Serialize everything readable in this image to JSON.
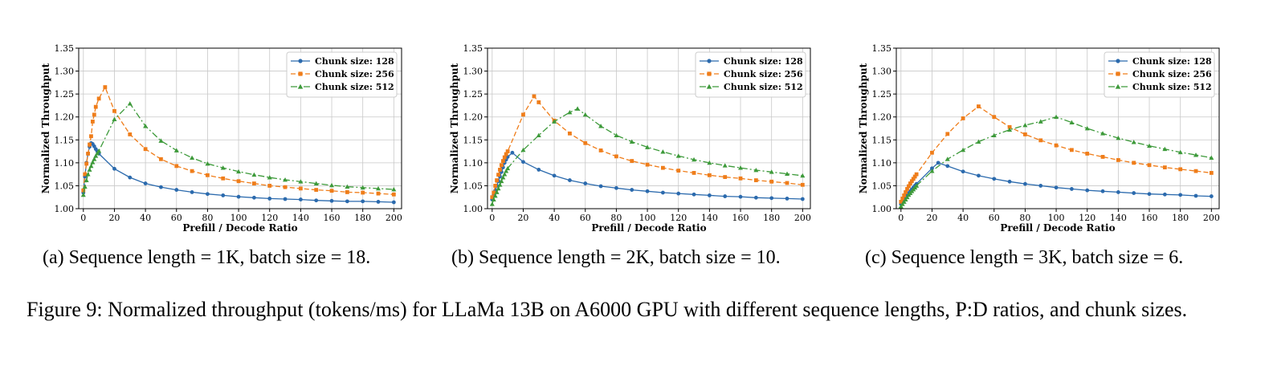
{
  "chart_data": [
    {
      "type": "line",
      "caption": "(a) Sequence length = 1K, batch size = 18.",
      "xlabel": "Prefill / Decode Ratio",
      "ylabel": "Normalized Throughput",
      "xlim": [
        -3,
        205
      ],
      "ylim": [
        1.0,
        1.35
      ],
      "xticks": [
        0,
        20,
        40,
        60,
        80,
        100,
        120,
        140,
        160,
        180,
        200
      ],
      "yticks": [
        1.0,
        1.05,
        1.1,
        1.15,
        1.2,
        1.25,
        1.3,
        1.35
      ],
      "grid": true,
      "legend_position": "top-right",
      "series": [
        {
          "name": "Chunk size: 128",
          "color": "#2b6aad",
          "marker": "circle",
          "dash": "solid",
          "x": [
            0,
            1,
            2,
            3,
            4,
            5,
            6,
            7,
            8,
            9,
            10,
            20,
            30,
            40,
            50,
            60,
            70,
            80,
            90,
            100,
            110,
            120,
            130,
            140,
            150,
            160,
            170,
            180,
            190,
            200
          ],
          "y": [
            1.035,
            1.07,
            1.1,
            1.12,
            1.135,
            1.143,
            1.141,
            1.136,
            1.13,
            1.125,
            1.12,
            1.087,
            1.068,
            1.055,
            1.047,
            1.041,
            1.036,
            1.032,
            1.029,
            1.026,
            1.024,
            1.022,
            1.021,
            1.02,
            1.018,
            1.017,
            1.016,
            1.016,
            1.015,
            1.014
          ]
        },
        {
          "name": "Chunk size: 256",
          "color": "#ef7d1a",
          "marker": "square",
          "dash": "dashed",
          "x": [
            0,
            1,
            2,
            3,
            4,
            5,
            6,
            7,
            8,
            10,
            14,
            20,
            30,
            40,
            50,
            60,
            70,
            80,
            90,
            100,
            110,
            120,
            130,
            140,
            150,
            160,
            170,
            180,
            190,
            200
          ],
          "y": [
            1.04,
            1.075,
            1.098,
            1.12,
            1.14,
            1.158,
            1.19,
            1.205,
            1.222,
            1.24,
            1.265,
            1.213,
            1.162,
            1.13,
            1.108,
            1.093,
            1.082,
            1.073,
            1.066,
            1.06,
            1.055,
            1.05,
            1.047,
            1.044,
            1.041,
            1.039,
            1.036,
            1.035,
            1.033,
            1.031
          ]
        },
        {
          "name": "Chunk size: 512",
          "color": "#3d9a3a",
          "marker": "triangle",
          "dash": "dashdot",
          "x": [
            0,
            1,
            2,
            3,
            4,
            5,
            6,
            7,
            8,
            9,
            10,
            20,
            30,
            40,
            50,
            60,
            70,
            80,
            90,
            100,
            110,
            120,
            130,
            140,
            150,
            160,
            170,
            180,
            190,
            200
          ],
          "y": [
            1.03,
            1.048,
            1.062,
            1.075,
            1.085,
            1.093,
            1.101,
            1.108,
            1.115,
            1.121,
            1.126,
            1.195,
            1.229,
            1.18,
            1.148,
            1.127,
            1.111,
            1.098,
            1.089,
            1.081,
            1.074,
            1.068,
            1.063,
            1.059,
            1.055,
            1.051,
            1.048,
            1.046,
            1.044,
            1.042
          ]
        }
      ]
    },
    {
      "type": "line",
      "caption": "(b) Sequence length = 2K, batch size = 10.",
      "xlabel": "Prefill / Decode Ratio",
      "ylabel": "Normalized Throughput",
      "xlim": [
        -3,
        205
      ],
      "ylim": [
        1.0,
        1.35
      ],
      "xticks": [
        0,
        20,
        40,
        60,
        80,
        100,
        120,
        140,
        160,
        180,
        200
      ],
      "yticks": [
        1.0,
        1.05,
        1.1,
        1.15,
        1.2,
        1.25,
        1.3,
        1.35
      ],
      "grid": true,
      "legend_position": "top-right",
      "series": [
        {
          "name": "Chunk size: 128",
          "color": "#2b6aad",
          "marker": "circle",
          "dash": "solid",
          "x": [
            0,
            1,
            2,
            3,
            4,
            5,
            6,
            7,
            8,
            9,
            10,
            13,
            20,
            30,
            40,
            50,
            60,
            70,
            80,
            90,
            100,
            110,
            120,
            130,
            140,
            150,
            160,
            170,
            180,
            190,
            200
          ],
          "y": [
            1.02,
            1.03,
            1.04,
            1.05,
            1.06,
            1.07,
            1.08,
            1.09,
            1.1,
            1.107,
            1.113,
            1.122,
            1.102,
            1.085,
            1.072,
            1.062,
            1.055,
            1.049,
            1.045,
            1.041,
            1.038,
            1.035,
            1.033,
            1.031,
            1.029,
            1.027,
            1.026,
            1.024,
            1.023,
            1.022,
            1.021
          ]
        },
        {
          "name": "Chunk size: 256",
          "color": "#ef7d1a",
          "marker": "square",
          "dash": "dashed",
          "x": [
            0,
            1,
            2,
            3,
            4,
            5,
            6,
            7,
            8,
            9,
            10,
            20,
            27,
            30,
            40,
            50,
            60,
            70,
            80,
            90,
            100,
            110,
            120,
            130,
            140,
            150,
            160,
            170,
            180,
            190,
            200
          ],
          "y": [
            1.025,
            1.035,
            1.05,
            1.062,
            1.074,
            1.085,
            1.095,
            1.104,
            1.112,
            1.119,
            1.125,
            1.205,
            1.245,
            1.232,
            1.192,
            1.164,
            1.143,
            1.127,
            1.114,
            1.104,
            1.096,
            1.089,
            1.083,
            1.078,
            1.073,
            1.069,
            1.066,
            1.062,
            1.059,
            1.056,
            1.052
          ]
        },
        {
          "name": "Chunk size: 512",
          "color": "#3d9a3a",
          "marker": "triangle",
          "dash": "dashdot",
          "x": [
            0,
            1,
            2,
            3,
            4,
            5,
            6,
            7,
            8,
            9,
            10,
            20,
            30,
            40,
            50,
            55,
            60,
            70,
            80,
            90,
            100,
            110,
            120,
            130,
            140,
            150,
            160,
            170,
            180,
            190,
            200
          ],
          "y": [
            1.01,
            1.02,
            1.028,
            1.036,
            1.044,
            1.052,
            1.06,
            1.068,
            1.075,
            1.082,
            1.088,
            1.128,
            1.16,
            1.19,
            1.21,
            1.218,
            1.205,
            1.18,
            1.16,
            1.146,
            1.134,
            1.124,
            1.115,
            1.107,
            1.1,
            1.094,
            1.089,
            1.084,
            1.08,
            1.076,
            1.072
          ]
        }
      ]
    },
    {
      "type": "line",
      "caption": "(c) Sequence length = 3K, batch size = 6.",
      "xlabel": "Prefill / Decode Ratio",
      "ylabel": "Normalized Throughput",
      "xlim": [
        -3,
        205
      ],
      "ylim": [
        1.0,
        1.35
      ],
      "xticks": [
        0,
        20,
        40,
        60,
        80,
        100,
        120,
        140,
        160,
        180,
        200
      ],
      "yticks": [
        1.0,
        1.05,
        1.1,
        1.15,
        1.2,
        1.25,
        1.3,
        1.35
      ],
      "grid": true,
      "legend_position": "top-right",
      "series": [
        {
          "name": "Chunk size: 128",
          "color": "#2b6aad",
          "marker": "circle",
          "dash": "solid",
          "x": [
            0,
            1,
            2,
            3,
            4,
            5,
            6,
            7,
            8,
            9,
            10,
            20,
            24,
            30,
            40,
            50,
            60,
            70,
            80,
            90,
            100,
            110,
            120,
            130,
            140,
            150,
            160,
            170,
            180,
            190,
            200
          ],
          "y": [
            1.01,
            1.015,
            1.02,
            1.025,
            1.03,
            1.034,
            1.038,
            1.042,
            1.046,
            1.05,
            1.054,
            1.088,
            1.1,
            1.093,
            1.081,
            1.072,
            1.065,
            1.059,
            1.054,
            1.05,
            1.046,
            1.043,
            1.04,
            1.038,
            1.036,
            1.034,
            1.032,
            1.031,
            1.03,
            1.028,
            1.027
          ]
        },
        {
          "name": "Chunk size: 256",
          "color": "#ef7d1a",
          "marker": "square",
          "dash": "dashed",
          "x": [
            0,
            1,
            2,
            3,
            4,
            5,
            6,
            7,
            8,
            9,
            10,
            20,
            30,
            40,
            50,
            60,
            70,
            80,
            90,
            100,
            110,
            120,
            130,
            140,
            150,
            160,
            170,
            180,
            190,
            200
          ],
          "y": [
            1.015,
            1.022,
            1.029,
            1.036,
            1.043,
            1.049,
            1.055,
            1.06,
            1.065,
            1.07,
            1.075,
            1.122,
            1.163,
            1.197,
            1.223,
            1.2,
            1.178,
            1.162,
            1.149,
            1.138,
            1.128,
            1.12,
            1.113,
            1.106,
            1.1,
            1.095,
            1.09,
            1.086,
            1.082,
            1.078
          ]
        },
        {
          "name": "Chunk size: 512",
          "color": "#3d9a3a",
          "marker": "triangle",
          "dash": "dashdot",
          "x": [
            0,
            1,
            2,
            3,
            4,
            5,
            6,
            7,
            8,
            9,
            10,
            20,
            30,
            40,
            50,
            60,
            70,
            80,
            90,
            100,
            110,
            120,
            130,
            140,
            150,
            160,
            170,
            180,
            190,
            200
          ],
          "y": [
            1.005,
            1.01,
            1.015,
            1.02,
            1.025,
            1.03,
            1.034,
            1.038,
            1.042,
            1.046,
            1.05,
            1.082,
            1.108,
            1.128,
            1.146,
            1.16,
            1.172,
            1.182,
            1.19,
            1.2,
            1.188,
            1.175,
            1.164,
            1.154,
            1.145,
            1.137,
            1.13,
            1.123,
            1.117,
            1.111
          ]
        }
      ]
    }
  ],
  "figure_caption": "Figure 9: Normalized throughput (tokens/ms) for LLaMa 13B on A6000 GPU with different sequence lengths, P:D ratios, and chunk sizes."
}
